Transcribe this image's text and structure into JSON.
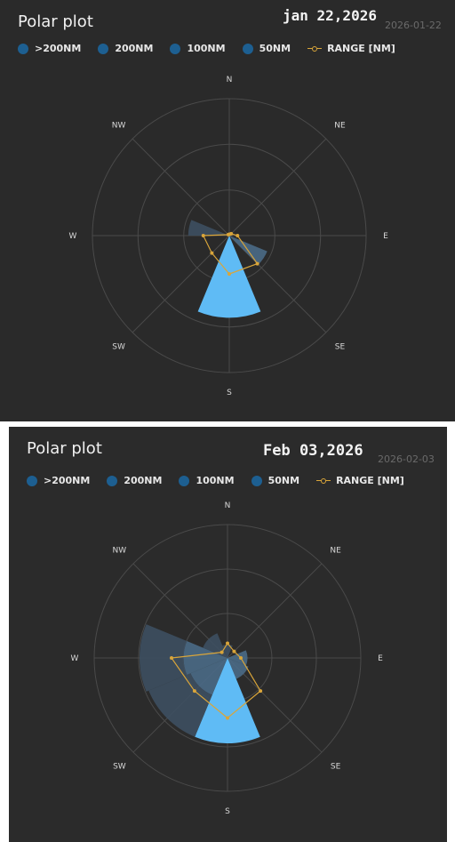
{
  "legend": [
    ">200NM",
    "200NM",
    "100NM",
    "50NM",
    "RANGE [NM]"
  ],
  "directions": [
    "N",
    "NE",
    "E",
    "SE",
    "S",
    "SW",
    "W",
    "NW"
  ],
  "colors": {
    "background": "#2a2a2a",
    "grid": "#4a4a4a",
    "bin_dark": "#3d4f60",
    "bin_mid": "#4a6a86",
    "bin_light": "#5fbbf5",
    "range_line": "#d9a53a",
    "legend_dot": "#1d5f91"
  },
  "panels": [
    {
      "title": "Polar plot",
      "date": "jan 22,2026",
      "date_small": "2026-01-22"
    },
    {
      "title": "Polar plot",
      "date": "Feb 03,2026",
      "date_small": "2026-02-03"
    }
  ],
  "chart_data": [
    {
      "type": "polar-area",
      "title": "Polar plot",
      "categories": [
        "N",
        "NE",
        "E",
        "SE",
        "S",
        "SW",
        "W",
        "NW"
      ],
      "rmax": 1.0,
      "rings": [
        0.333,
        0.667,
        1.0
      ],
      "sectors": [
        {
          "dir": "E",
          "start": 112.5,
          "end": 135,
          "r0": 0.0,
          "r1": 0.3,
          "shade": "mid"
        },
        {
          "dir": "S",
          "start": 157.5,
          "end": 202.5,
          "r0": 0.0,
          "r1": 0.6,
          "shade": "light"
        },
        {
          "dir": "W",
          "start": 270,
          "end": 292.5,
          "r0": 0.0,
          "r1": 0.3,
          "shade": "dark"
        }
      ],
      "series": [
        {
          "name": "RANGE [NM]",
          "points": [
            {
              "dir": "N",
              "r": 0.01
            },
            {
              "dir": "NE",
              "r": 0.02
            },
            {
              "dir": "E",
              "r": 0.06
            },
            {
              "dir": "SE",
              "r": 0.29
            },
            {
              "dir": "S",
              "r": 0.28
            },
            {
              "dir": "SW",
              "r": 0.18
            },
            {
              "dir": "W",
              "r": 0.19
            },
            {
              "dir": "NW",
              "r": 0.01
            }
          ]
        }
      ]
    },
    {
      "type": "polar-area",
      "title": "Polar plot",
      "categories": [
        "N",
        "NE",
        "E",
        "SE",
        "S",
        "SW",
        "W",
        "NW"
      ],
      "rmax": 1.0,
      "rings": [
        0.333,
        0.667,
        1.0
      ],
      "sectors": [
        {
          "dir": "N",
          "start": -22.5,
          "end": 22.5,
          "r0": 0.0,
          "r1": 0.1,
          "shade": "dark"
        },
        {
          "dir": "E",
          "start": 67.5,
          "end": 112.5,
          "r0": 0.0,
          "r1": 0.15,
          "shade": "mid"
        },
        {
          "dir": "SE",
          "start": 112.5,
          "end": 157.5,
          "r0": 0.0,
          "r1": 0.17,
          "shade": "mid"
        },
        {
          "dir": "S",
          "start": 157.5,
          "end": 202.5,
          "r0": 0.0,
          "r1": 0.64,
          "shade": "light"
        },
        {
          "dir": "SW",
          "start": 202.5,
          "end": 247.5,
          "r0": 0.0,
          "r1": 0.3,
          "shade": "mid"
        },
        {
          "dir": "SW",
          "start": 202.5,
          "end": 247.5,
          "r0": 0.3,
          "r1": 0.64,
          "shade": "dark"
        },
        {
          "dir": "W",
          "start": 247.5,
          "end": 292.5,
          "r0": 0.0,
          "r1": 0.33,
          "shade": "mid"
        },
        {
          "dir": "W",
          "start": 247.5,
          "end": 292.5,
          "r0": 0.33,
          "r1": 0.66,
          "shade": "dark"
        },
        {
          "dir": "NW",
          "start": 292.5,
          "end": 337.5,
          "r0": 0.0,
          "r1": 0.2,
          "shade": "dark"
        }
      ],
      "series": [
        {
          "name": "RANGE [NM]",
          "points": [
            {
              "dir": "N",
              "r": 0.11
            },
            {
              "dir": "NE",
              "r": 0.07
            },
            {
              "dir": "E",
              "r": 0.1
            },
            {
              "dir": "SE",
              "r": 0.35
            },
            {
              "dir": "S",
              "r": 0.45
            },
            {
              "dir": "SW",
              "r": 0.35
            },
            {
              "dir": "W",
              "r": 0.42
            },
            {
              "dir": "NW",
              "r": 0.06
            }
          ]
        }
      ]
    }
  ]
}
